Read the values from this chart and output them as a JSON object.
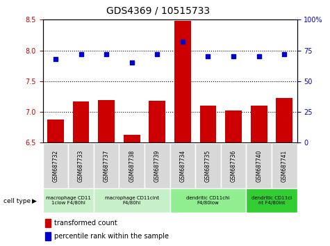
{
  "title": "GDS4369 / 10515733",
  "samples": [
    "GSM687732",
    "GSM687733",
    "GSM687737",
    "GSM687738",
    "GSM687739",
    "GSM687734",
    "GSM687735",
    "GSM687736",
    "GSM687740",
    "GSM687741"
  ],
  "bar_values": [
    6.88,
    7.17,
    7.19,
    6.63,
    7.18,
    8.48,
    7.1,
    7.02,
    7.1,
    7.23
  ],
  "scatter_values": [
    68,
    72,
    72,
    65,
    72,
    82,
    70,
    70,
    70,
    72
  ],
  "ylim_left": [
    6.5,
    8.5
  ],
  "ylim_right": [
    0,
    100
  ],
  "yticks_left": [
    6.5,
    7.0,
    7.5,
    8.0,
    8.5
  ],
  "yticks_right": [
    0,
    25,
    50,
    75,
    100
  ],
  "ytick_labels_right": [
    "0",
    "25",
    "50",
    "75",
    "100%"
  ],
  "bar_color": "#cc0000",
  "scatter_color": "#0000cc",
  "bar_bottom": 6.5,
  "group_labels": [
    "macrophage CD11\n1clow F4/80hi",
    "macrophage CD11cint\nF4/80hi",
    "dendritic CD11chi\nF4/80low",
    "dendritic CD11ci\nnt F4/80int"
  ],
  "group_starts": [
    0,
    2,
    5,
    8
  ],
  "group_ends": [
    2,
    5,
    8,
    10
  ],
  "group_colors": [
    "#c8f0c8",
    "#c8f0c8",
    "#90ee90",
    "#32cd32"
  ],
  "legend_bar_label": "transformed count",
  "legend_scatter_label": "percentile rank within the sample",
  "cell_type_label": "cell type",
  "bg_color": "#ffffff",
  "grid_lines": [
    7.0,
    7.5,
    8.0
  ],
  "sample_box_color": "#d8d8d8"
}
